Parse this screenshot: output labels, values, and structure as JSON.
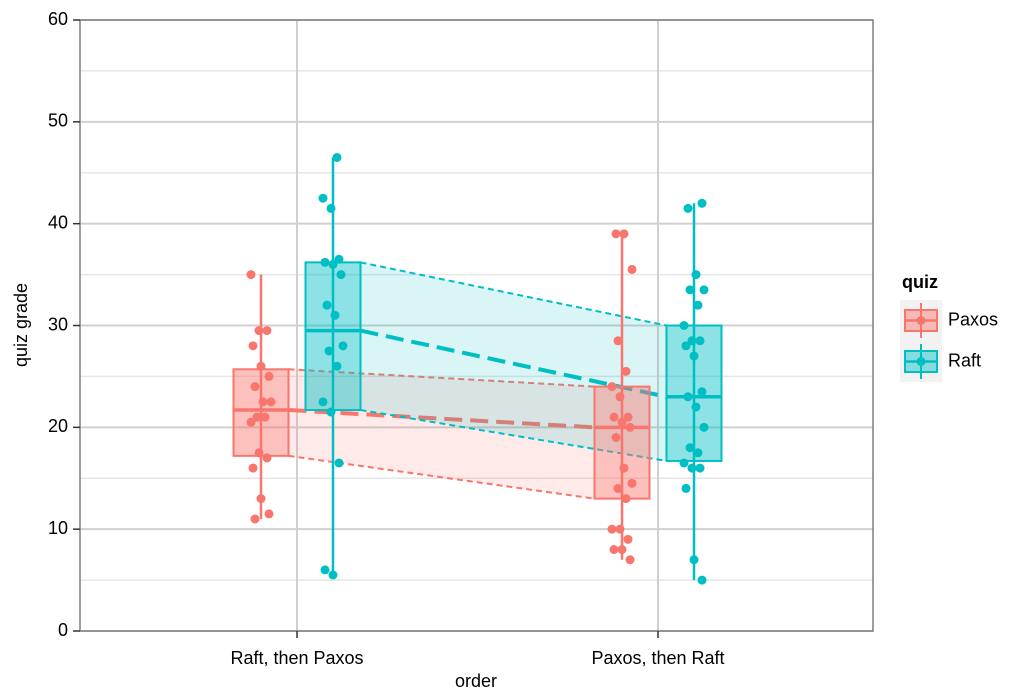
{
  "chart_data": {
    "type": "box",
    "x_label": "order",
    "y_label": "quiz grade",
    "legend_title": "quiz",
    "categories": [
      "Raft, then Paxos",
      "Paxos, then Raft"
    ],
    "ylim": [
      0,
      60
    ],
    "yticks": [
      0,
      10,
      20,
      30,
      40,
      50,
      60
    ],
    "yminor": [
      5,
      15,
      25,
      35,
      45,
      55
    ],
    "grid": true,
    "series": [
      {
        "name": "Paxos",
        "color": "#F8766D",
        "boxes": [
          {
            "min": 11,
            "q1": 17.2,
            "median": 21.7,
            "q3": 25.7,
            "max": 35,
            "points": [
              35,
              29.5,
              29.5,
              28,
              26,
              25,
              24,
              22.5,
              22.5,
              21,
              21,
              20.5,
              17.5,
              17,
              16,
              13,
              11.5,
              11
            ]
          },
          {
            "min": 7,
            "q1": 13,
            "median": 20,
            "q3": 24,
            "max": 39,
            "points": [
              39,
              39,
              35.5,
              28.5,
              25.5,
              24,
              23,
              21,
              21,
              20.5,
              20,
              19,
              16,
              14.5,
              14,
              13,
              10,
              10,
              9,
              8,
              8,
              7
            ]
          }
        ]
      },
      {
        "name": "Raft",
        "color": "#00BFC4",
        "boxes": [
          {
            "min": 5.5,
            "q1": 21.7,
            "median": 29.5,
            "q3": 36.2,
            "max": 46.5,
            "points": [
              46.5,
              42.5,
              41.5,
              36.5,
              36.2,
              36,
              35,
              32,
              31,
              28,
              27.5,
              26,
              22.5,
              21.5,
              16.5,
              6,
              5.5
            ]
          },
          {
            "min": 5,
            "q1": 16.7,
            "median": 23,
            "q3": 30,
            "max": 42,
            "points": [
              42,
              41.5,
              35,
              33.5,
              33.5,
              32,
              30,
              28.5,
              28.5,
              28,
              27,
              23.5,
              23,
              22,
              20,
              18,
              17.5,
              16.5,
              16,
              16,
              14,
              7,
              5
            ]
          }
        ]
      }
    ]
  }
}
